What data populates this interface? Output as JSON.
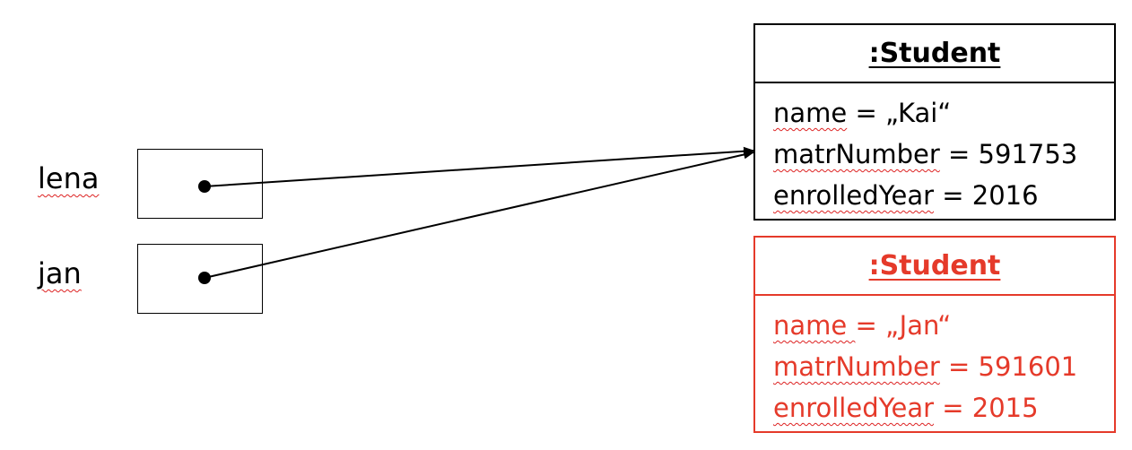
{
  "variables": [
    {
      "name": "lena"
    },
    {
      "name": "jan"
    }
  ],
  "objects": [
    {
      "title": ":Student",
      "color": "#000000",
      "attributes": [
        {
          "key": "name",
          "value": " = „Kai“"
        },
        {
          "key": "matrNumber",
          "value": " = 591753"
        },
        {
          "key": "enrolledYear",
          "value": " = 2016"
        }
      ]
    },
    {
      "title": ":Student",
      "color": "#e53a2a",
      "attributes": [
        {
          "key": "name ",
          "value": "= „Jan“"
        },
        {
          "key": "matrNumber",
          "value": " = 591601"
        },
        {
          "key": "enrolledYear",
          "value": " = 2015"
        }
      ]
    }
  ]
}
